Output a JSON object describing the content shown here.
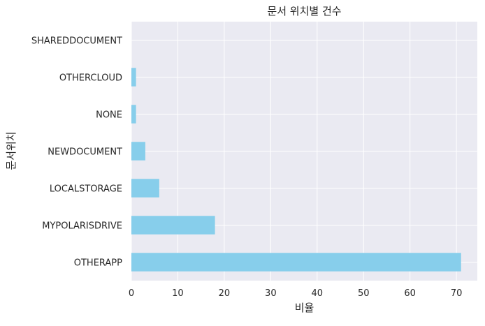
{
  "chart_data": {
    "type": "bar",
    "orientation": "horizontal",
    "title": "문서 위치별 건수",
    "xlabel": "비율",
    "ylabel": "문서위치",
    "categories": [
      "OTHERAPP",
      "MYPOLARISDRIVE",
      "LOCALSTORAGE",
      "NEWDOCUMENT",
      "NONE",
      "OTHERCLOUD",
      "SHAREDDOCUMENT"
    ],
    "values": [
      71,
      18,
      6,
      3,
      1,
      1,
      0
    ],
    "xlim": [
      0,
      74.5
    ],
    "xticks": [
      0,
      10,
      20,
      30,
      40,
      50,
      60,
      70
    ],
    "grid": true,
    "legend": "none",
    "colors": {
      "bar": "#87CEEB",
      "plot_background": "#EAEAF2",
      "grid": "#FFFFFF"
    }
  }
}
